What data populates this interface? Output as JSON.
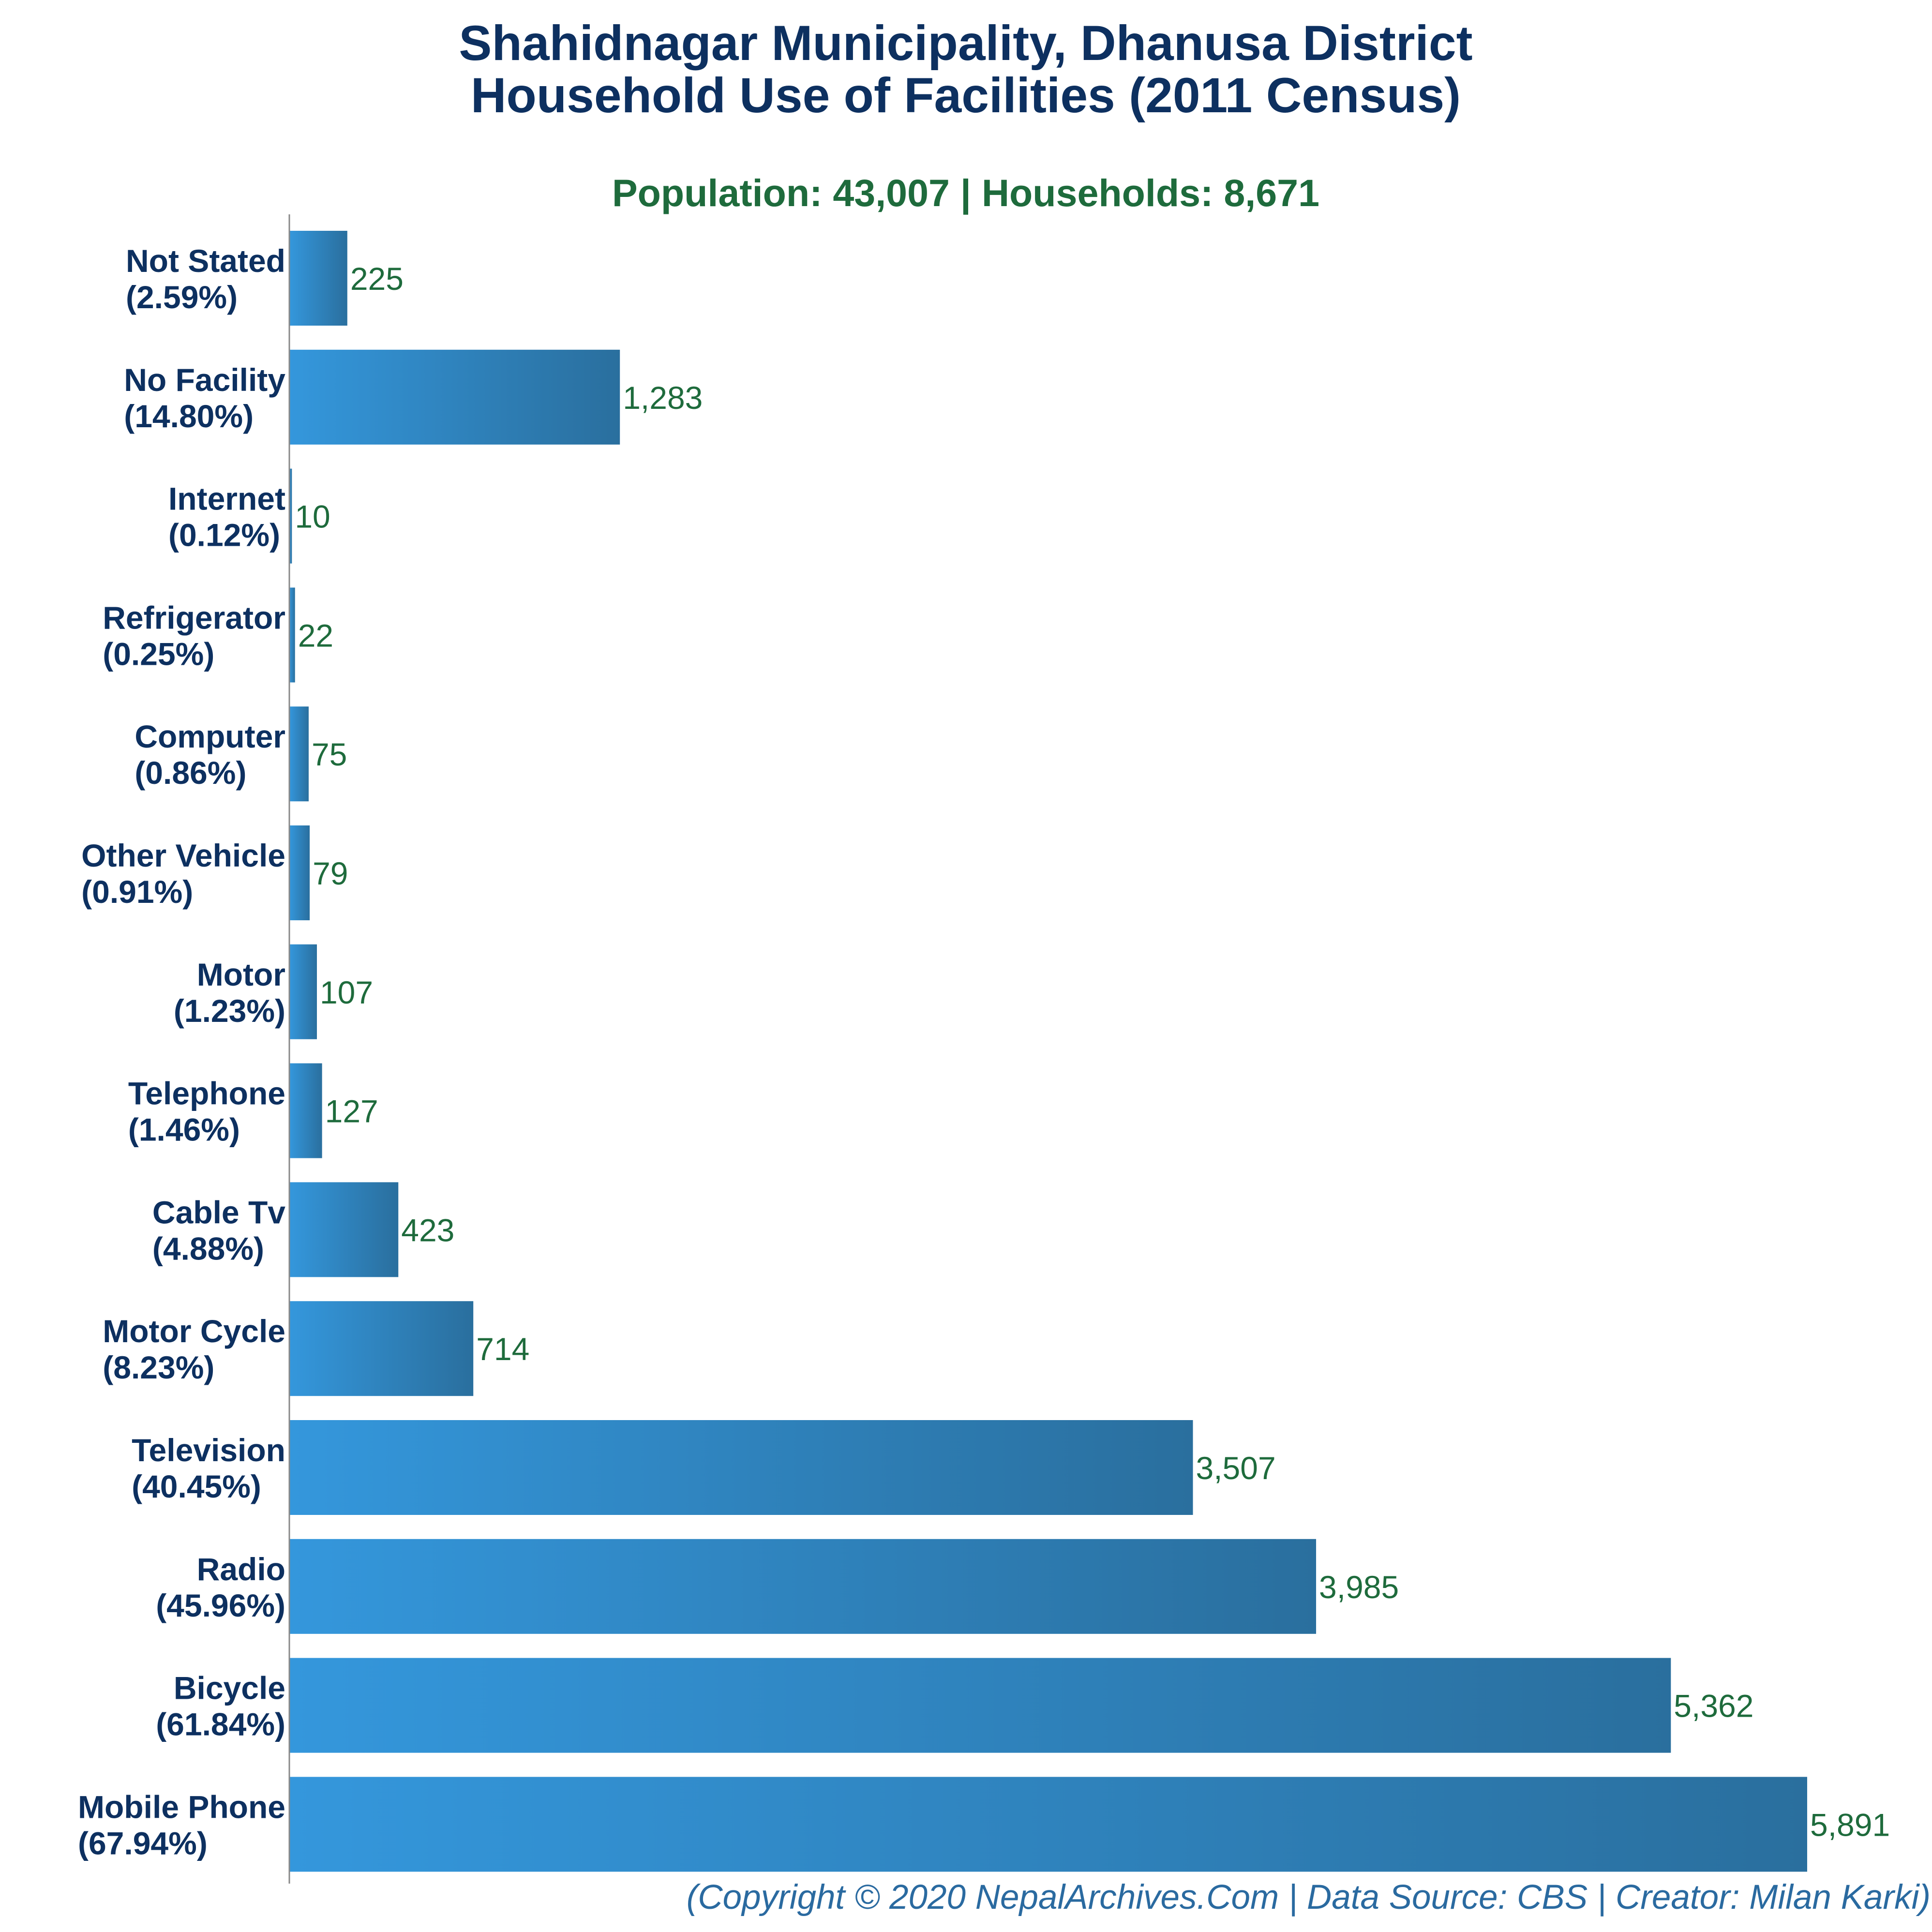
{
  "chart_data": {
    "type": "bar",
    "orientation": "horizontal",
    "title_line1": "Shahidnagar Municipality, Dhanusa District",
    "title_line2": "Household Use of Facilities (2011 Census)",
    "subtitle": "Population: 43,007 | Households: 8,671",
    "footer": "(Copyright © 2020 NepalArchives.Com | Data Source: CBS | Creator: Milan Karki)",
    "categories": [
      {
        "name": "Not Stated",
        "pct": "(2.59%)",
        "value": 225,
        "value_label": "225"
      },
      {
        "name": "No Facility",
        "pct": "(14.80%)",
        "value": 1283,
        "value_label": "1,283"
      },
      {
        "name": "Internet",
        "pct": "(0.12%)",
        "value": 10,
        "value_label": "10"
      },
      {
        "name": "Refrigerator",
        "pct": "(0.25%)",
        "value": 22,
        "value_label": "22"
      },
      {
        "name": "Computer",
        "pct": "(0.86%)",
        "value": 75,
        "value_label": "75"
      },
      {
        "name": "Other Vehicle",
        "pct": "(0.91%)",
        "value": 79,
        "value_label": "79"
      },
      {
        "name": "Motor",
        "pct": "(1.23%)",
        "value": 107,
        "value_label": "107"
      },
      {
        "name": "Telephone",
        "pct": "(1.46%)",
        "value": 127,
        "value_label": "127"
      },
      {
        "name": "Cable Tv",
        "pct": "(4.88%)",
        "value": 423,
        "value_label": "423"
      },
      {
        "name": "Motor Cycle",
        "pct": "(8.23%)",
        "value": 714,
        "value_label": "714"
      },
      {
        "name": "Television",
        "pct": "(40.45%)",
        "value": 3507,
        "value_label": "3,507"
      },
      {
        "name": "Radio",
        "pct": "(45.96%)",
        "value": 3985,
        "value_label": "3,985"
      },
      {
        "name": "Bicycle",
        "pct": "(61.84%)",
        "value": 5362,
        "value_label": "5,362"
      },
      {
        "name": "Mobile Phone",
        "pct": "(67.94%)",
        "value": 5891,
        "value_label": "5,891"
      }
    ],
    "xlim": [
      0,
      5891
    ],
    "grid": false,
    "legend": "none",
    "colors": {
      "bar_left": "#3497dc",
      "bar_right": "#2a6f9e",
      "axis": "#888888"
    }
  }
}
